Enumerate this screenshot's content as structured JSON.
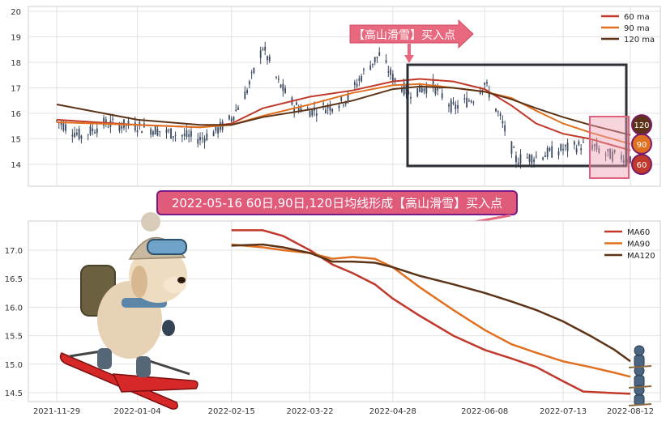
{
  "chart_data": [
    {
      "type": "line",
      "panel": "top",
      "title": "",
      "xlabel": "",
      "ylabel": "",
      "ylim": [
        13.3,
        20.2
      ],
      "y_ticks": [
        "14",
        "15",
        "16",
        "17",
        "18",
        "19",
        "20"
      ],
      "grid": true,
      "legend_placement": "top-right",
      "candles_daily_range": "2021-11-29 to 2022-08-12",
      "series": [
        {
          "name": "60 ma",
          "color": "#c0392b",
          "points": [
            [
              "2021-11-29",
              15.75
            ],
            [
              "2022-01-04",
              15.55
            ],
            [
              "2022-02-01",
              15.45
            ],
            [
              "2022-02-15",
              15.6
            ],
            [
              "2022-03-01",
              16.2
            ],
            [
              "2022-03-22",
              16.65
            ],
            [
              "2022-04-10",
              16.9
            ],
            [
              "2022-04-28",
              17.25
            ],
            [
              "2022-05-10",
              17.35
            ],
            [
              "2022-05-25",
              17.25
            ],
            [
              "2022-06-08",
              16.95
            ],
            [
              "2022-06-20",
              16.3
            ],
            [
              "2022-07-01",
              15.6
            ],
            [
              "2022-07-13",
              15.2
            ],
            [
              "2022-07-25",
              15.0
            ],
            [
              "2022-08-12",
              14.55
            ]
          ]
        },
        {
          "name": "90 ma",
          "color": "#e07020",
          "points": [
            [
              "2021-11-29",
              15.65
            ],
            [
              "2022-01-04",
              15.55
            ],
            [
              "2022-02-01",
              15.45
            ],
            [
              "2022-02-15",
              15.55
            ],
            [
              "2022-03-01",
              15.9
            ],
            [
              "2022-03-22",
              16.35
            ],
            [
              "2022-04-10",
              16.8
            ],
            [
              "2022-04-28",
              17.1
            ],
            [
              "2022-05-10",
              17.15
            ],
            [
              "2022-05-25",
              17.0
            ],
            [
              "2022-06-08",
              16.85
            ],
            [
              "2022-06-20",
              16.6
            ],
            [
              "2022-07-01",
              16.1
            ],
            [
              "2022-07-13",
              15.6
            ],
            [
              "2022-07-25",
              15.25
            ],
            [
              "2022-08-12",
              14.8
            ]
          ]
        },
        {
          "name": "120 ma",
          "color": "#5c3317",
          "points": [
            [
              "2021-11-29",
              16.35
            ],
            [
              "2022-01-04",
              15.75
            ],
            [
              "2022-02-01",
              15.55
            ],
            [
              "2022-02-15",
              15.55
            ],
            [
              "2022-03-01",
              15.85
            ],
            [
              "2022-03-22",
              16.15
            ],
            [
              "2022-04-10",
              16.5
            ],
            [
              "2022-04-28",
              16.95
            ],
            [
              "2022-05-10",
              17.05
            ],
            [
              "2022-05-25",
              17.0
            ],
            [
              "2022-06-08",
              16.85
            ],
            [
              "2022-06-20",
              16.55
            ],
            [
              "2022-07-01",
              16.2
            ],
            [
              "2022-07-13",
              15.85
            ],
            [
              "2022-07-25",
              15.55
            ],
            [
              "2022-08-12",
              15.15
            ]
          ]
        }
      ],
      "end_markers": [
        {
          "label": "120",
          "value": 15.55,
          "color": "#5c3317"
        },
        {
          "label": "90",
          "value": 14.8,
          "color": "#e07020"
        },
        {
          "label": "60",
          "value": 14.0,
          "color": "#c0392b"
        }
      ],
      "annotation": {
        "text": "【高山滑雪】买入点",
        "date": "2022-05-16"
      }
    },
    {
      "type": "line",
      "panel": "bottom",
      "title": "",
      "xlabel": "",
      "ylabel": "",
      "ylim": [
        14.3,
        17.5
      ],
      "y_ticks": [
        "14.5",
        "15.0",
        "15.5",
        "16.0",
        "16.5",
        "17.0"
      ],
      "x_ticks": [
        "2021-11-29",
        "2022-01-04",
        "2022-02-15",
        "2022-03-22",
        "2022-04-28",
        "2022-06-08",
        "2022-07-13",
        "2022-08-12"
      ],
      "grid": true,
      "legend_placement": "top-right",
      "series": [
        {
          "name": "MA60",
          "color": "#c0392b",
          "points": [
            [
              "2022-02-15",
              17.35
            ],
            [
              "2022-03-01",
              17.35
            ],
            [
              "2022-03-10",
              17.25
            ],
            [
              "2022-03-22",
              17.0
            ],
            [
              "2022-04-01",
              16.75
            ],
            [
              "2022-04-10",
              16.6
            ],
            [
              "2022-04-20",
              16.4
            ],
            [
              "2022-04-28",
              16.15
            ],
            [
              "2022-05-10",
              15.85
            ],
            [
              "2022-05-25",
              15.5
            ],
            [
              "2022-06-08",
              15.25
            ],
            [
              "2022-06-20",
              15.1
            ],
            [
              "2022-07-01",
              14.95
            ],
            [
              "2022-07-13",
              14.7
            ],
            [
              "2022-07-22",
              14.52
            ],
            [
              "2022-08-01",
              14.5
            ],
            [
              "2022-08-12",
              14.48
            ]
          ]
        },
        {
          "name": "MA90",
          "color": "#e07020",
          "points": [
            [
              "2022-02-15",
              17.1
            ],
            [
              "2022-03-01",
              17.05
            ],
            [
              "2022-03-10",
              17.0
            ],
            [
              "2022-03-22",
              16.95
            ],
            [
              "2022-04-01",
              16.85
            ],
            [
              "2022-04-10",
              16.88
            ],
            [
              "2022-04-20",
              16.85
            ],
            [
              "2022-04-28",
              16.7
            ],
            [
              "2022-05-10",
              16.35
            ],
            [
              "2022-05-25",
              15.95
            ],
            [
              "2022-06-08",
              15.6
            ],
            [
              "2022-06-20",
              15.35
            ],
            [
              "2022-07-01",
              15.2
            ],
            [
              "2022-07-13",
              15.05
            ],
            [
              "2022-07-25",
              14.95
            ],
            [
              "2022-08-05",
              14.85
            ],
            [
              "2022-08-12",
              14.78
            ]
          ]
        },
        {
          "name": "MA120",
          "color": "#5c3317",
          "points": [
            [
              "2022-02-15",
              17.08
            ],
            [
              "2022-03-01",
              17.1
            ],
            [
              "2022-03-10",
              17.05
            ],
            [
              "2022-03-22",
              16.95
            ],
            [
              "2022-04-01",
              16.8
            ],
            [
              "2022-04-10",
              16.8
            ],
            [
              "2022-04-20",
              16.78
            ],
            [
              "2022-04-28",
              16.7
            ],
            [
              "2022-05-10",
              16.55
            ],
            [
              "2022-05-25",
              16.4
            ],
            [
              "2022-06-08",
              16.25
            ],
            [
              "2022-06-20",
              16.1
            ],
            [
              "2022-07-01",
              15.95
            ],
            [
              "2022-07-13",
              15.75
            ],
            [
              "2022-07-25",
              15.5
            ],
            [
              "2022-08-05",
              15.25
            ],
            [
              "2022-08-12",
              15.05
            ]
          ]
        }
      ]
    }
  ],
  "banner": {
    "text": "2022-05-16 60日,90日,120日均线形成【高山滑雪】买入点",
    "background": "#e05a7a",
    "border": "#7a1a8a"
  },
  "colors": {
    "candle": "#3b4a60",
    "box": "#2b2f36",
    "highlight": "#f0a0b4",
    "annotation_fill": "#e8697f"
  },
  "decorations": {
    "mascot": "skiing-dog-illustration",
    "small_mascot": "stacked-skier-figures"
  }
}
